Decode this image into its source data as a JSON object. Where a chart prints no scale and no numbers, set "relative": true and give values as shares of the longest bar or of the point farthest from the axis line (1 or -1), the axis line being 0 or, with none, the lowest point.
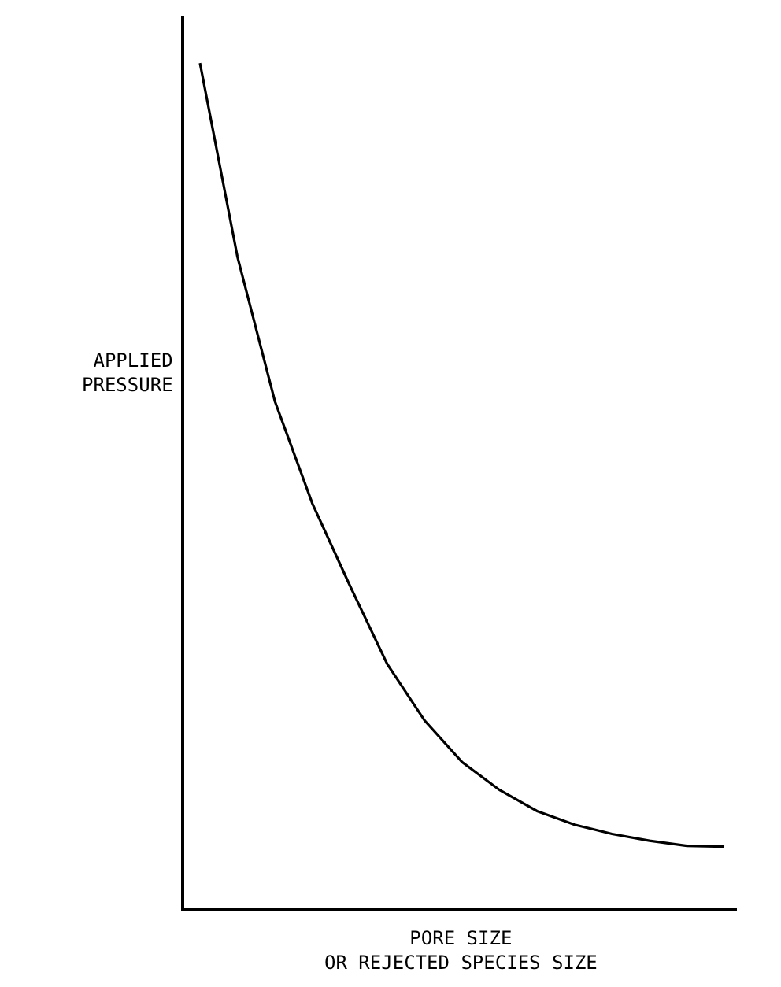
{
  "chart_data": {
    "type": "line",
    "relative": true,
    "xlabel": "PORE SIZE\nOR REJECTED SPECIES SIZE",
    "ylabel": "APPLIED\nPRESSURE",
    "categories": [
      null,
      null,
      null,
      null,
      null,
      null,
      null,
      null,
      null,
      null,
      null,
      null,
      null,
      null,
      null
    ],
    "series": [
      {
        "color": "#000000",
        "values": [
          1.0,
          0.771,
          0.6,
          0.479,
          0.382,
          0.289,
          0.222,
          0.173,
          0.14,
          0.115,
          0.099,
          0.088,
          0.08,
          0.074,
          0.073
        ]
      }
    ],
    "marker": "none",
    "line_style": "solid"
  }
}
